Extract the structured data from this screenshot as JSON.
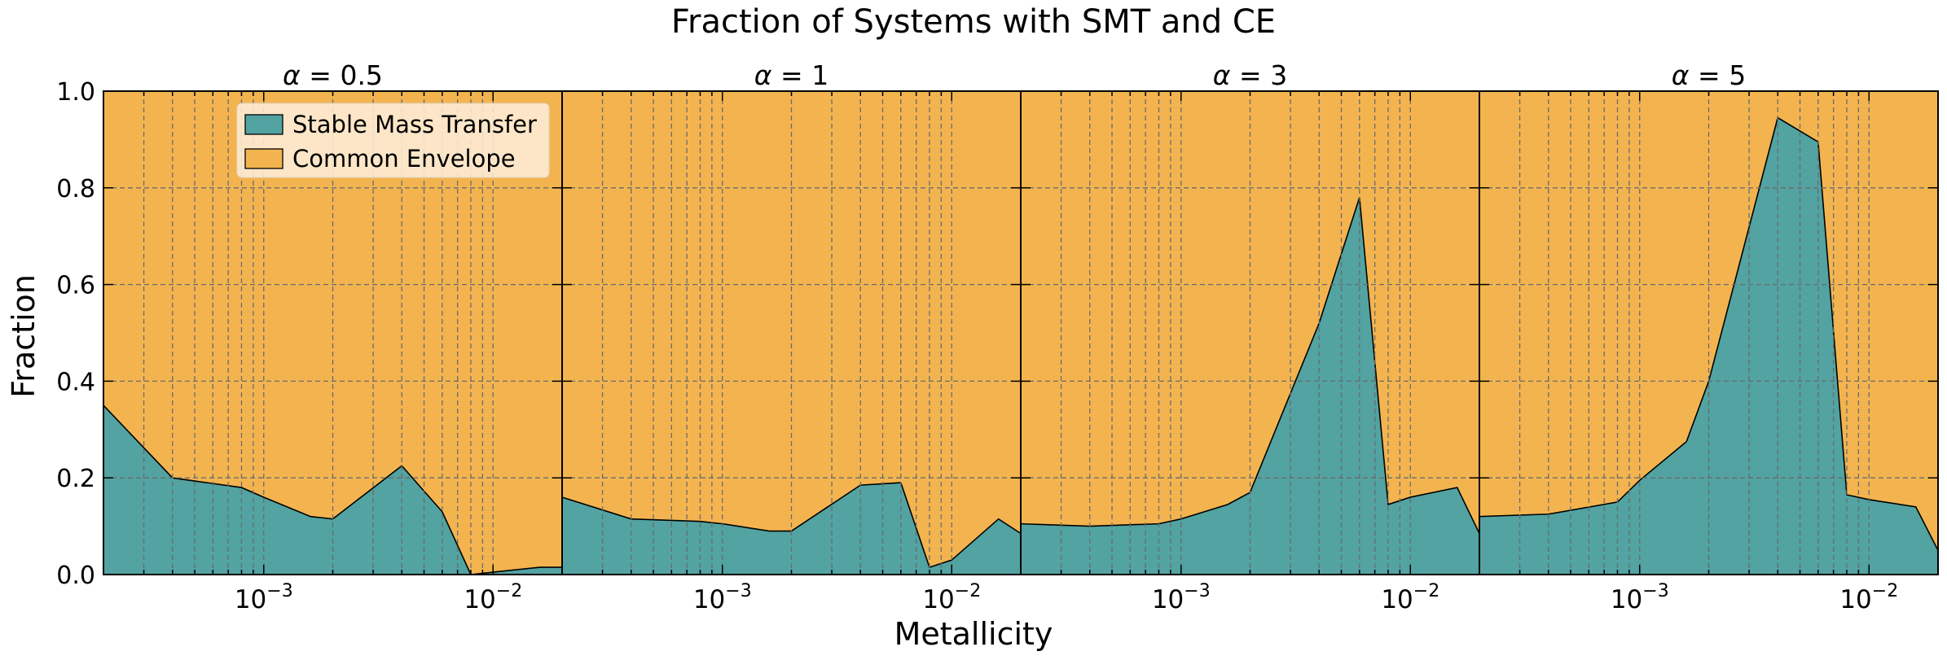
{
  "figure": {
    "title": "Fraction of Systems with SMT and CE",
    "xlabel": "Metallicity",
    "ylabel": "Fraction"
  },
  "chart_data": [
    {
      "type": "area",
      "title": "α = 0.5",
      "title_symbol": "α",
      "title_value": "= 0.5",
      "x_scale": "log",
      "xlim": [
        0.0002,
        0.02
      ],
      "ylim": [
        0,
        1
      ],
      "grid": true,
      "legend_position": "top-left",
      "x": [
        0.0002,
        0.0004,
        0.0008,
        0.001,
        0.0016,
        0.002,
        0.004,
        0.006,
        0.008,
        0.01,
        0.016,
        0.02
      ],
      "series": [
        {
          "name": "Stable Mass Transfer",
          "values": [
            0.35,
            0.2,
            0.18,
            0.16,
            0.12,
            0.115,
            0.225,
            0.13,
            0.0,
            0.005,
            0.015,
            0.015
          ]
        },
        {
          "name": "Common Envelope",
          "values": [
            0.65,
            0.8,
            0.82,
            0.84,
            0.88,
            0.885,
            0.775,
            0.87,
            1.0,
            0.995,
            0.985,
            0.985
          ]
        }
      ]
    },
    {
      "type": "area",
      "title": "α = 1",
      "title_symbol": "α",
      "title_value": "= 1",
      "x_scale": "log",
      "xlim": [
        0.0002,
        0.02
      ],
      "ylim": [
        0,
        1
      ],
      "grid": true,
      "x": [
        0.0002,
        0.0004,
        0.0008,
        0.001,
        0.0016,
        0.002,
        0.004,
        0.006,
        0.008,
        0.01,
        0.016,
        0.02
      ],
      "series": [
        {
          "name": "Stable Mass Transfer",
          "values": [
            0.16,
            0.115,
            0.11,
            0.105,
            0.09,
            0.09,
            0.185,
            0.19,
            0.015,
            0.03,
            0.115,
            0.085
          ]
        },
        {
          "name": "Common Envelope",
          "values": [
            0.84,
            0.885,
            0.89,
            0.895,
            0.91,
            0.91,
            0.815,
            0.81,
            0.985,
            0.97,
            0.885,
            0.915
          ]
        }
      ]
    },
    {
      "type": "area",
      "title": "α = 3",
      "title_symbol": "α",
      "title_value": "= 3",
      "x_scale": "log",
      "xlim": [
        0.0002,
        0.02
      ],
      "ylim": [
        0,
        1
      ],
      "grid": true,
      "x": [
        0.0002,
        0.0004,
        0.0008,
        0.001,
        0.0016,
        0.002,
        0.004,
        0.006,
        0.008,
        0.01,
        0.016,
        0.02
      ],
      "series": [
        {
          "name": "Stable Mass Transfer",
          "values": [
            0.105,
            0.1,
            0.105,
            0.115,
            0.145,
            0.17,
            0.52,
            0.78,
            0.145,
            0.16,
            0.18,
            0.085
          ]
        },
        {
          "name": "Common Envelope",
          "values": [
            0.895,
            0.9,
            0.895,
            0.885,
            0.855,
            0.83,
            0.48,
            0.22,
            0.855,
            0.84,
            0.82,
            0.915
          ]
        }
      ]
    },
    {
      "type": "area",
      "title": "α = 5",
      "title_symbol": "α",
      "title_value": "= 5",
      "x_scale": "log",
      "xlim": [
        0.0002,
        0.02
      ],
      "ylim": [
        0,
        1
      ],
      "grid": true,
      "x": [
        0.0002,
        0.0004,
        0.0008,
        0.001,
        0.0016,
        0.002,
        0.004,
        0.006,
        0.008,
        0.01,
        0.016,
        0.02
      ],
      "series": [
        {
          "name": "Stable Mass Transfer",
          "values": [
            0.12,
            0.125,
            0.15,
            0.195,
            0.275,
            0.4,
            0.945,
            0.895,
            0.165,
            0.155,
            0.14,
            0.05
          ]
        },
        {
          "name": "Common Envelope",
          "values": [
            0.88,
            0.875,
            0.85,
            0.805,
            0.725,
            0.6,
            0.055,
            0.105,
            0.835,
            0.845,
            0.86,
            0.95
          ]
        }
      ]
    }
  ],
  "legend": {
    "items": [
      {
        "label": "Stable Mass Transfer",
        "color": "#52A3A1"
      },
      {
        "label": "Common Envelope",
        "color": "#F3B450"
      }
    ]
  },
  "colors": {
    "smt": "#52A3A1",
    "ce": "#F3B450",
    "grid": "#6b6b6b",
    "legend_bg": "#FDEEDC"
  },
  "axes": {
    "yticks": [
      "0.0",
      "0.2",
      "0.4",
      "0.6",
      "0.8",
      "1.0"
    ],
    "xtick_labels": [
      {
        "value": 0.001,
        "base": "10",
        "exp": "−3"
      },
      {
        "value": 0.01,
        "base": "10",
        "exp": "−2"
      }
    ]
  }
}
